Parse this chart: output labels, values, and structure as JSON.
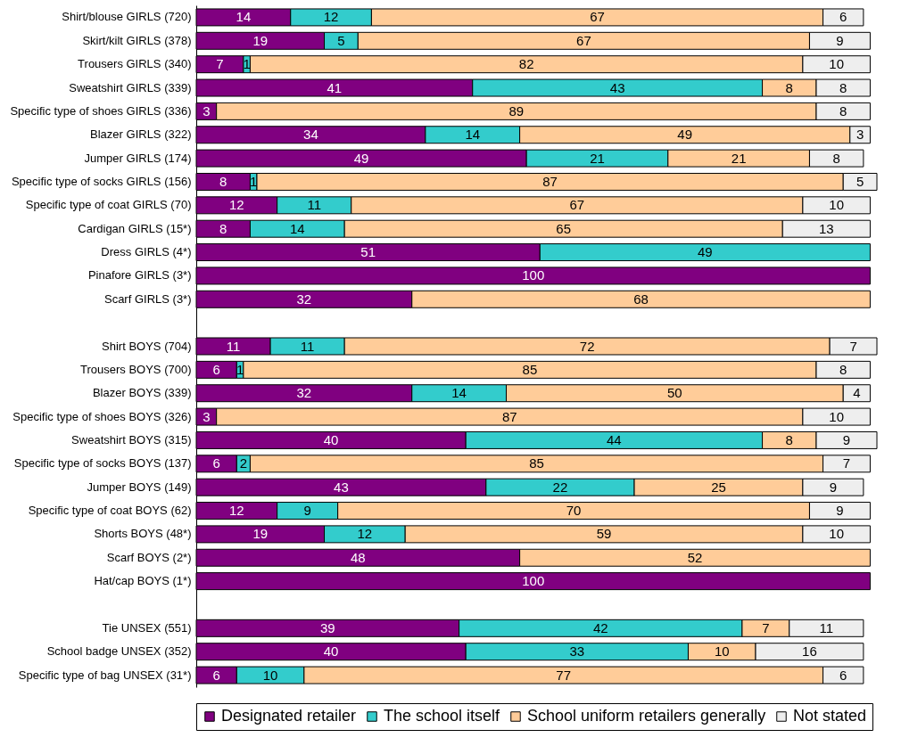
{
  "chart_data": {
    "type": "bar",
    "orientation": "horizontal",
    "stacked": true,
    "data_labels": true,
    "legend": "bottom",
    "categories": [
      "Shirt/blouse GIRLS (720)",
      "Skirt/kilt GIRLS (378)",
      "Trousers GIRLS (340)",
      "Sweatshirt GIRLS (339)",
      "Specific type of shoes GIRLS (336)",
      "Blazer GIRLS (322)",
      "Jumper GIRLS (174)",
      "Specific type of socks GIRLS (156)",
      "Specific type of coat GIRLS (70)",
      "Cardigan GIRLS (15*)",
      "Dress GIRLS (4*)",
      "Pinafore GIRLS (3*)",
      "Scarf GIRLS (3*)",
      null,
      "Shirt BOYS (704)",
      "Trousers BOYS (700)",
      "Blazer BOYS (339)",
      "Specific type of shoes BOYS (326)",
      "Sweatshirt BOYS (315)",
      "Specific type of socks BOYS (137)",
      "Jumper BOYS (149)",
      "Specific type of coat BOYS (62)",
      "Shorts BOYS (48*)",
      "Scarf BOYS (2*)",
      "Hat/cap BOYS (1*)",
      null,
      "Tie UNSEX (551)",
      "School badge UNSEX (352)",
      "Specific type of bag UNSEX (31*)"
    ],
    "series": [
      {
        "name": "Designated retailer",
        "color": "#800080",
        "values": [
          14,
          19,
          7,
          41,
          3,
          34,
          49,
          8,
          12,
          8,
          51,
          100,
          32,
          null,
          11,
          6,
          32,
          3,
          40,
          6,
          43,
          12,
          19,
          48,
          100,
          null,
          39,
          40,
          6
        ]
      },
      {
        "name": "The school itself",
        "color": "#33cccc",
        "values": [
          12,
          5,
          1,
          43,
          null,
          14,
          21,
          1,
          11,
          14,
          49,
          null,
          null,
          null,
          11,
          1,
          14,
          null,
          44,
          2,
          22,
          9,
          12,
          null,
          null,
          null,
          42,
          33,
          10
        ]
      },
      {
        "name": "School uniform retailers generally",
        "color": "#ffcc99",
        "values": [
          67,
          67,
          82,
          8,
          89,
          49,
          21,
          87,
          67,
          65,
          null,
          null,
          68,
          null,
          72,
          85,
          50,
          87,
          8,
          85,
          25,
          70,
          59,
          52,
          null,
          null,
          7,
          10,
          77
        ]
      },
      {
        "name": "Not stated",
        "color": "#eeeeee",
        "values": [
          6,
          9,
          10,
          8,
          8,
          3,
          8,
          5,
          10,
          13,
          null,
          null,
          null,
          null,
          7,
          8,
          4,
          10,
          9,
          7,
          9,
          9,
          10,
          null,
          null,
          null,
          11,
          16,
          6
        ]
      }
    ]
  }
}
